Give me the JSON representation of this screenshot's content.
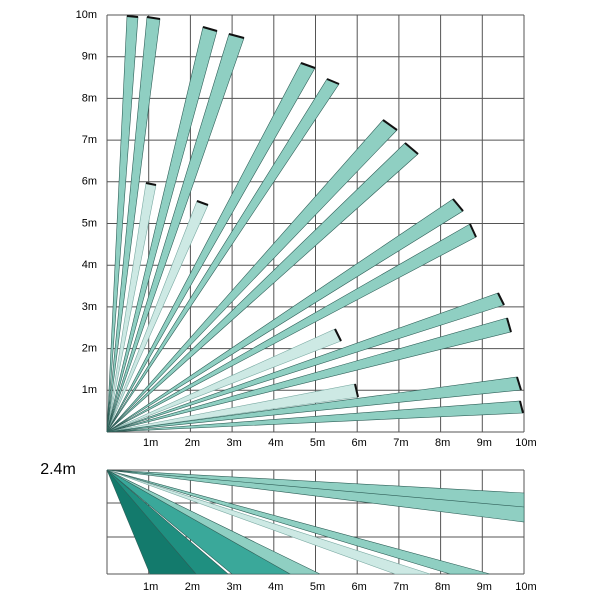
{
  "top_view": {
    "x_labels": [
      "1m",
      "2m",
      "3m",
      "4m",
      "5m",
      "6m",
      "7m",
      "8m",
      "9m",
      "10m"
    ],
    "y_labels": [
      "1m",
      "2m",
      "3m",
      "4m",
      "5m",
      "6m",
      "7m",
      "8m",
      "9m",
      "10m"
    ]
  },
  "side_view": {
    "height_label": "2.4m",
    "x_labels": [
      "1m",
      "2m",
      "3m",
      "4m",
      "5m",
      "6m",
      "7m",
      "8m",
      "9m",
      "10m"
    ]
  }
}
